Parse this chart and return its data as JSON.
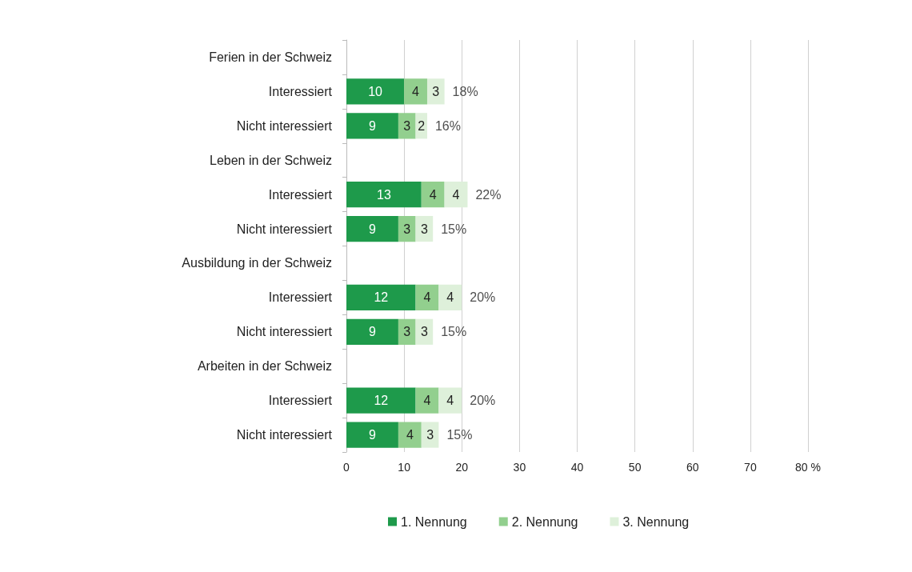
{
  "chart_data": {
    "type": "bar",
    "orientation": "horizontal",
    "stacked": true,
    "categories": [
      "Ferien in der Schweiz",
      "Interessiert",
      "Nicht interessiert",
      "Leben in der Schweiz",
      "Interessiert",
      "Nicht interessiert",
      "Ausbildung in der Schweiz",
      "Interessiert",
      "Nicht interessiert",
      "Arbeiten in der Schweiz",
      "Interessiert",
      "Nicht interessiert"
    ],
    "series": [
      {
        "name": "1. Nennung",
        "color": "#1e9a4b",
        "values": [
          null,
          10,
          9,
          null,
          13,
          9,
          null,
          12,
          9,
          null,
          12,
          9
        ]
      },
      {
        "name": "2. Nennung",
        "color": "#92cf8e",
        "values": [
          null,
          4,
          3,
          null,
          4,
          3,
          null,
          4,
          3,
          null,
          4,
          4
        ]
      },
      {
        "name": "3. Nennung",
        "color": "#def0da",
        "values": [
          null,
          3,
          2,
          null,
          4,
          3,
          null,
          4,
          3,
          null,
          4,
          3
        ]
      }
    ],
    "totals": [
      null,
      "18%",
      "16%",
      null,
      "22%",
      "15%",
      null,
      "20%",
      "15%",
      null,
      "20%",
      "15%"
    ],
    "data_labels": true,
    "xlim": [
      0,
      80
    ],
    "xticks": [
      0,
      10,
      20,
      30,
      40,
      50,
      60,
      70,
      {
        "value": 80,
        "label": "80 %"
      }
    ],
    "grid": "x",
    "legend": "bottom"
  }
}
